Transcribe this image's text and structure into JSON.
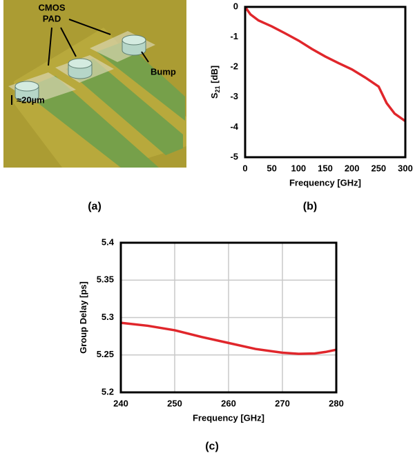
{
  "illustration": {
    "labels": {
      "pad_line1": "CMOS",
      "pad_line2": "PAD",
      "bump": "Bump",
      "height": "≈20µm"
    },
    "caption": "(a)"
  },
  "chart_data": [
    {
      "type": "line",
      "caption": "(b)",
      "xlabel": "Frequency [GHz]",
      "ylabel": {
        "text": "S",
        "subscript": "21",
        "unit": " [dB]"
      },
      "x": [
        0,
        10,
        25,
        50,
        75,
        100,
        125,
        150,
        175,
        200,
        225,
        250,
        265,
        280,
        300
      ],
      "values": [
        0,
        -0.25,
        -0.45,
        -0.65,
        -0.88,
        -1.12,
        -1.4,
        -1.65,
        -1.87,
        -2.08,
        -2.35,
        -2.65,
        -3.2,
        -3.55,
        -3.8
      ],
      "color": "#e0262b",
      "xlim": [
        0,
        300
      ],
      "xticks": [
        0,
        50,
        100,
        150,
        200,
        250,
        300
      ],
      "ylim": [
        -5,
        0
      ],
      "yticks": [
        0,
        -1,
        -2,
        -3,
        -4,
        -5
      ],
      "grid": false
    },
    {
      "type": "line",
      "caption": "(c)",
      "xlabel": "Frequency [GHz]",
      "ylabel": {
        "text": "Group Delay [ps]"
      },
      "x": [
        240,
        245,
        250,
        255,
        260,
        265,
        270,
        273,
        276,
        278,
        280
      ],
      "values": [
        5.293,
        5.289,
        5.283,
        5.274,
        5.266,
        5.258,
        5.253,
        5.2515,
        5.252,
        5.254,
        5.257
      ],
      "color": "#e0262b",
      "xlim": [
        240,
        280
      ],
      "xticks": [
        240,
        250,
        260,
        270,
        280
      ],
      "ylim": [
        5.2,
        5.4
      ],
      "yticks": [
        5.2,
        5.25,
        5.3,
        5.35,
        5.4
      ],
      "grid": true
    }
  ]
}
